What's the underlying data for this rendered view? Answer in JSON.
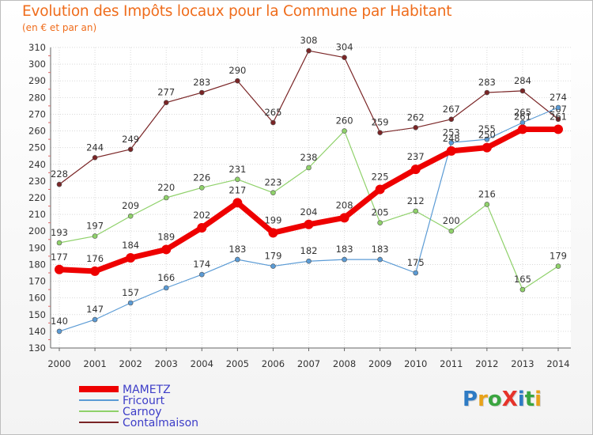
{
  "header": {
    "title": "Evolution des Impôts locaux pour la Commune par Habitant",
    "subtitle": "(en € et par an)"
  },
  "logo": {
    "text": "ProXiti",
    "colors": [
      "#2e7bc4",
      "#e8a21a",
      "#3aa540",
      "#e6332a",
      "#2e7bc4",
      "#3aa540",
      "#e8a21a"
    ]
  },
  "chart_data": {
    "type": "line",
    "x": [
      "2000",
      "2001",
      "2002",
      "2003",
      "2004",
      "2005",
      "2006",
      "2007",
      "2008",
      "2009",
      "2010",
      "2011",
      "2012",
      "2013",
      "2014"
    ],
    "ylim": [
      130,
      310
    ],
    "yticks": [
      130,
      140,
      150,
      160,
      170,
      180,
      190,
      200,
      210,
      220,
      230,
      240,
      250,
      260,
      270,
      280,
      290,
      300,
      310
    ],
    "grid": true,
    "legend_position": "bottom-left",
    "series": [
      {
        "name": "Contalmaison",
        "color": "#7a2526",
        "line_width": 1.2,
        "marker_radius": 3,
        "values": [
          228,
          244,
          249,
          277,
          283,
          290,
          265,
          308,
          304,
          259,
          262,
          267,
          283,
          284,
          267
        ],
        "labels": [
          "228",
          "244",
          "249",
          "277",
          "283",
          "290",
          "265",
          "308",
          "304",
          "259",
          "262",
          "267",
          "283",
          "284",
          "267"
        ]
      },
      {
        "name": "Carnoy",
        "color": "#8fd16a",
        "line_width": 1.2,
        "marker_radius": 3,
        "values": [
          193,
          197,
          209,
          220,
          226,
          231,
          223,
          238,
          260,
          205,
          212,
          200,
          216,
          165,
          179
        ],
        "labels": [
          "193",
          "197",
          "209",
          "220",
          "226",
          "231",
          "223",
          "238",
          "260",
          "205",
          "212",
          "200",
          "216",
          "165",
          "179"
        ]
      },
      {
        "name": "Fricourt",
        "color": "#5b9bd5",
        "line_width": 1.2,
        "marker_radius": 3,
        "values": [
          140,
          147,
          157,
          166,
          174,
          183,
          179,
          182,
          183,
          183,
          175,
          253,
          255,
          265,
          274
        ],
        "labels": [
          "140",
          "147",
          "157",
          "166",
          "174",
          "183",
          "179",
          "182",
          "183",
          "183",
          "175",
          "253",
          "255",
          "265",
          "274"
        ]
      },
      {
        "name": "MAMETZ",
        "color": "#ee0000",
        "line_width": 7,
        "marker_radius": 6,
        "values": [
          177,
          176,
          184,
          189,
          202,
          217,
          199,
          204,
          208,
          225,
          237,
          248,
          250,
          261,
          261
        ],
        "labels": [
          "177",
          "176",
          "184",
          "189",
          "202",
          "217",
          "199",
          "204",
          "208",
          "225",
          "237",
          "248",
          "250",
          "261",
          "261"
        ]
      }
    ],
    "legend": [
      {
        "name": "MAMETZ",
        "color": "#ee0000",
        "thick": true
      },
      {
        "name": "Fricourt",
        "color": "#5b9bd5",
        "thick": false
      },
      {
        "name": "Carnoy",
        "color": "#8fd16a",
        "thick": false
      },
      {
        "name": "Contalmaison",
        "color": "#7a2526",
        "thick": false
      }
    ],
    "legend_text_color": "#3d3dc8"
  }
}
